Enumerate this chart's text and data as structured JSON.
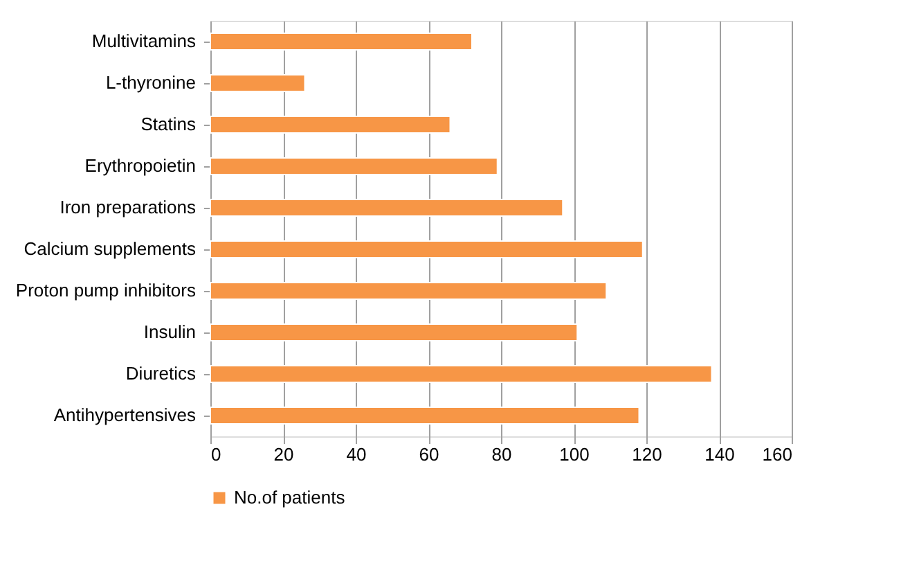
{
  "chart_data": {
    "type": "bar",
    "orientation": "horizontal",
    "categories": [
      "Multivitamins",
      "L-thyronine",
      "Statins",
      "Erythropoietin",
      "Iron preparations",
      "Calcium supplements",
      "Proton pump inhibitors",
      "Insulin",
      "Diuretics",
      "Antihypertensives"
    ],
    "series": [
      {
        "name": "No.of patients",
        "color": "#f79646",
        "values": [
          72,
          26,
          66,
          79,
          97,
          119,
          109,
          101,
          138,
          118
        ]
      }
    ],
    "xlim": [
      0,
      160
    ],
    "xticks": [
      0,
      20,
      40,
      60,
      80,
      100,
      120,
      140,
      160
    ],
    "grid": "x",
    "legend": "bottom"
  }
}
